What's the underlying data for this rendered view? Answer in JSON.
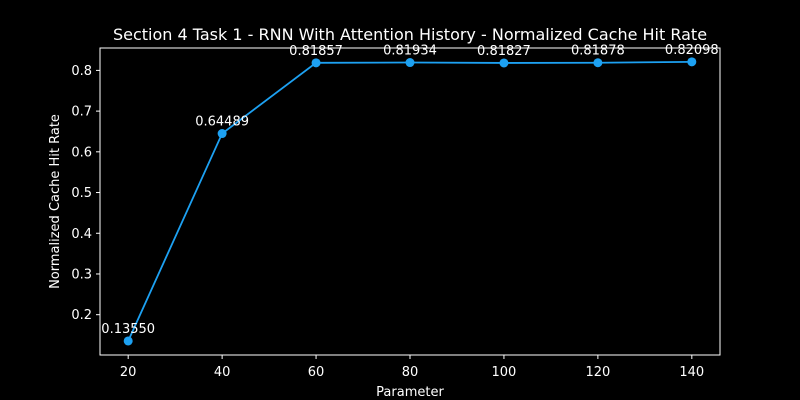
{
  "chart_data": {
    "type": "line",
    "title": "Section 4 Task 1 - RNN With Attention History - Normalized Cache Hit Rate",
    "xlabel": "Parameter",
    "ylabel": "Normalized Cache Hit Rate",
    "x": [
      20,
      40,
      60,
      80,
      100,
      120,
      140
    ],
    "xlim": [
      14,
      146
    ],
    "ylim": [
      0.101,
      0.855
    ],
    "xticks": [
      20,
      40,
      60,
      80,
      100,
      120,
      140
    ],
    "yticks": [
      0.2,
      0.3,
      0.4,
      0.5,
      0.6,
      0.7,
      0.8
    ],
    "ytick_labels": [
      "0.2",
      "0.3",
      "0.4",
      "0.5",
      "0.6",
      "0.7",
      "0.8"
    ],
    "grid": false,
    "series": [
      {
        "values": [
          0.1355,
          0.64489,
          0.81857,
          0.81934,
          0.81827,
          0.81878,
          0.82098
        ],
        "labels": [
          "0.13550",
          "0.64489",
          "0.81857",
          "0.81934",
          "0.81827",
          "0.81878",
          "0.82098"
        ],
        "color": "#1da1f2"
      }
    ],
    "background_color": "#000000",
    "foreground_color": "#ffffff"
  }
}
